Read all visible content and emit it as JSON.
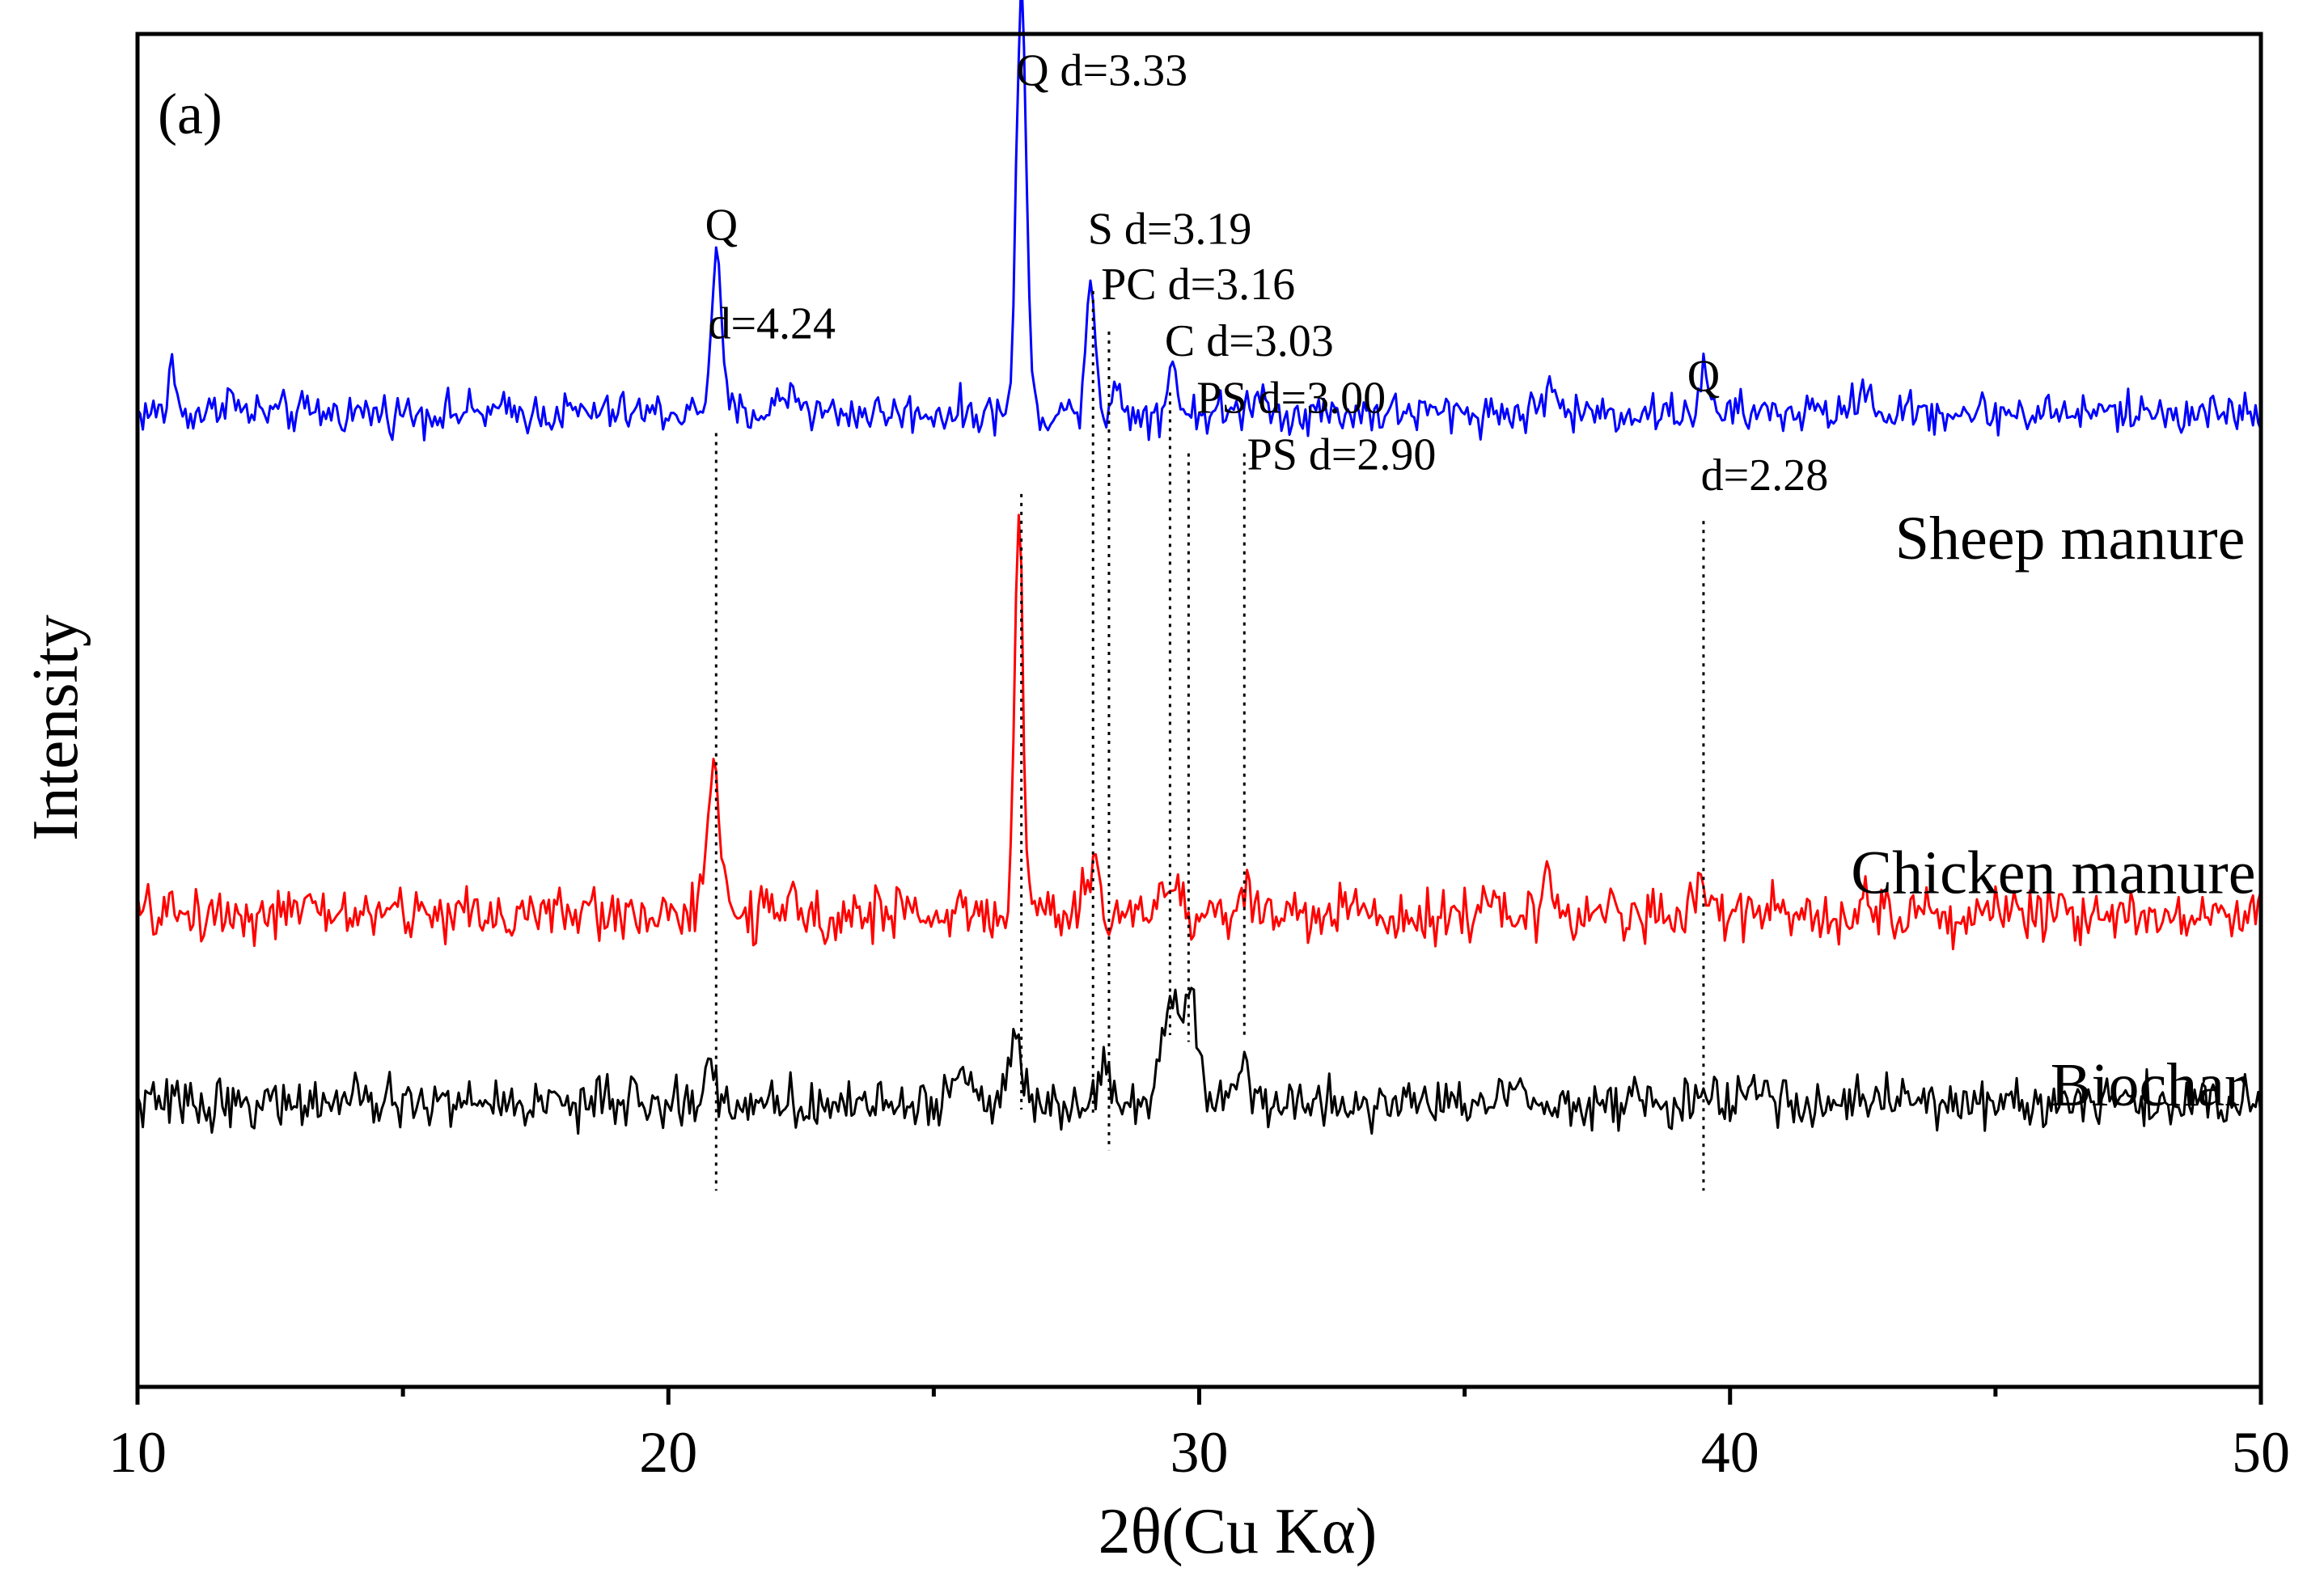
{
  "chart_data": {
    "type": "line",
    "panel_label": "(a)",
    "xlabel": "2θ(Cu Kα)",
    "ylabel": "Intensity",
    "xlim": [
      10,
      50
    ],
    "ylim": [
      0,
      100
    ],
    "x_ticks": [
      10,
      20,
      30,
      40,
      50
    ],
    "x_tick_labels": [
      "10",
      "20",
      "30",
      "40",
      "50"
    ],
    "x_minor_ticks": [
      15,
      25,
      35,
      45
    ],
    "y_ticks_shown": false,
    "grid": false,
    "offset_step": 0.1,
    "series": [
      {
        "name": "Sheep manure",
        "color": "#0000ff",
        "baseline": 72,
        "noise": 1.5,
        "peaks": [
          {
            "x": 10.65,
            "h": 4.5,
            "w": 0.05
          },
          {
            "x": 11.7,
            "h": 1.5,
            "w": 0.1
          },
          {
            "x": 20.9,
            "h": 11,
            "w": 0.1
          },
          {
            "x": 22.3,
            "h": 1.5,
            "w": 0.2
          },
          {
            "x": 26.65,
            "h": 32,
            "w": 0.09
          },
          {
            "x": 27.95,
            "h": 10,
            "w": 0.09
          },
          {
            "x": 28.45,
            "h": 1.5,
            "w": 0.1
          },
          {
            "x": 29.5,
            "h": 4.5,
            "w": 0.07
          },
          {
            "x": 31.1,
            "h": 1.5,
            "w": 0.15
          },
          {
            "x": 36.6,
            "h": 2,
            "w": 0.12
          },
          {
            "x": 39.5,
            "h": 3,
            "w": 0.08
          },
          {
            "x": 42.5,
            "h": 2,
            "w": 0.12
          }
        ]
      },
      {
        "name": "Chicken manure",
        "color": "#ff0000",
        "baseline": 35,
        "noise": 2.0,
        "peaks": [
          {
            "x": 20.85,
            "h": 10,
            "w": 0.12
          },
          {
            "x": 26.6,
            "h": 29,
            "w": 0.08
          },
          {
            "x": 28.0,
            "h": 3,
            "w": 0.12
          },
          {
            "x": 29.4,
            "h": 2,
            "w": 0.2
          },
          {
            "x": 30.9,
            "h": 2,
            "w": 0.1
          },
          {
            "x": 36.6,
            "h": 2,
            "w": 0.12
          },
          {
            "x": 39.5,
            "h": 2.5,
            "w": 0.1
          },
          {
            "x": 42.5,
            "h": 1.5,
            "w": 0.12
          }
        ]
      },
      {
        "name": "Biochar",
        "color": "#000000",
        "baseline": 21,
        "noise": 1.8,
        "peaks": [
          {
            "x": 20.8,
            "h": 2.5,
            "w": 0.1
          },
          {
            "x": 25.6,
            "h": 2.5,
            "w": 0.15
          },
          {
            "x": 26.55,
            "h": 5,
            "w": 0.12
          },
          {
            "x": 28.2,
            "h": 3.5,
            "w": 0.12
          },
          {
            "x": 29.45,
            "h": 8,
            "w": 0.15
          },
          {
            "x": 29.85,
            "h": 8,
            "w": 0.15
          },
          {
            "x": 30.8,
            "h": 3,
            "w": 0.12
          },
          {
            "x": 36.0,
            "h": 1.5,
            "w": 0.2
          },
          {
            "x": 40.5,
            "h": 1.5,
            "w": 0.2
          }
        ]
      }
    ],
    "reference_lines": [
      {
        "x": 20.9,
        "y_top": 70.5,
        "y_bottom": 14.5
      },
      {
        "x": 26.65,
        "y_top": 66,
        "y_bottom": 20.5
      },
      {
        "x": 28.0,
        "y_top": 81,
        "y_bottom": 20
      },
      {
        "x": 28.3,
        "y_top": 78,
        "y_bottom": 17.5
      },
      {
        "x": 29.45,
        "y_top": 73.5,
        "y_bottom": 26
      },
      {
        "x": 29.8,
        "y_top": 69,
        "y_bottom": 25.5
      },
      {
        "x": 30.85,
        "y_top": 69,
        "y_bottom": 26
      },
      {
        "x": 39.5,
        "y_top": 64,
        "y_bottom": 14.5
      }
    ],
    "annotations": [
      {
        "text": "Q",
        "x": 21.0,
        "y": 84.8,
        "anchor": "middle"
      },
      {
        "text": "d=4.24",
        "x": 20.75,
        "y": 77.5,
        "anchor": "start"
      },
      {
        "text": "Q d=3.33",
        "x": 26.55,
        "y": 96.2,
        "anchor": "start"
      },
      {
        "text": "S d=3.19",
        "x": 27.9,
        "y": 84.5,
        "anchor": "start"
      },
      {
        "text": "PC d=3.16",
        "x": 28.15,
        "y": 80.4,
        "anchor": "start"
      },
      {
        "text": "C d=3.03",
        "x": 29.35,
        "y": 76.2,
        "anchor": "start"
      },
      {
        "text": "PS d=3.00",
        "x": 29.95,
        "y": 72.0,
        "anchor": "start"
      },
      {
        "text": "PS d=2.90",
        "x": 30.9,
        "y": 67.8,
        "anchor": "start"
      },
      {
        "text": "Q",
        "x": 39.5,
        "y": 73.6,
        "anchor": "middle"
      },
      {
        "text": "d=2.28",
        "x": 39.45,
        "y": 66.3,
        "anchor": "start"
      }
    ],
    "series_labels": [
      {
        "text": "Sheep manure",
        "x": 49.7,
        "y": 61.2
      },
      {
        "text": "Chicken manure",
        "x": 49.9,
        "y": 36.5
      },
      {
        "text": "Biochar",
        "x": 49.7,
        "y": 20.8
      }
    ]
  }
}
